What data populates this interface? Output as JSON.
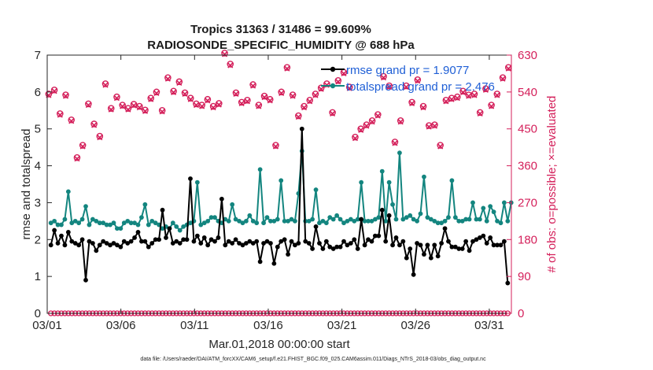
{
  "chart_data": {
    "type": "line",
    "title": "Tropics 31363 / 31486 = 99.609%",
    "subtitle": "RADIOSONDE_SPECIFIC_HUMIDITY @ 688 hPa",
    "xlabel": "Mar.01,2018 00:00:00 start",
    "ylabel": "rmse and totalspread",
    "ylabel_right": "# of obs: o=possible; ×=evaluated",
    "footnote": "data file: /Users/raeder/DAI/ATM_forcXX/CAM6_setup/f.e21.FHIST_BGC.f09_025.CAM6assim.011/Diags_NTrS_2018-03/obs_diag_output.nc",
    "xlim": [
      0,
      31.5
    ],
    "ylim": [
      0,
      7
    ],
    "ylim_right": [
      0,
      630
    ],
    "x_ticks": [
      {
        "x": 0,
        "label": "03/01"
      },
      {
        "x": 5,
        "label": "03/06"
      },
      {
        "x": 10,
        "label": "03/11"
      },
      {
        "x": 15,
        "label": "03/16"
      },
      {
        "x": 20,
        "label": "03/21"
      },
      {
        "x": 25,
        "label": "03/26"
      },
      {
        "x": 30,
        "label": "03/31"
      }
    ],
    "y_ticks": [
      "0",
      "1",
      "2",
      "3",
      "4",
      "5",
      "6",
      "7"
    ],
    "y_ticks_right": [
      "0",
      "90",
      "180",
      "270",
      "360",
      "450",
      "540",
      "630"
    ],
    "series": [
      {
        "name": "rmse grand pr = 1.9077",
        "color": "#000000",
        "axis": "left",
        "values": [
          1.85,
          2.25,
          1.9,
          2.1,
          1.85,
          2.2,
          1.95,
          1.9,
          1.85,
          2.0,
          0.9,
          1.95,
          1.9,
          1.7,
          1.85,
          1.95,
          1.9,
          1.85,
          1.9,
          1.85,
          1.8,
          1.95,
          1.9,
          1.95,
          2.05,
          2.2,
          1.95,
          1.95,
          1.8,
          1.9,
          2.0,
          2.0,
          2.8,
          2.05,
          2.3,
          1.9,
          1.95,
          1.9,
          2.0,
          2.0,
          3.65,
          1.95,
          2.1,
          1.9,
          2.05,
          1.85,
          2.0,
          1.95,
          2.05,
          3.1,
          1.85,
          1.95,
          1.9,
          2.0,
          1.9,
          1.85,
          1.9,
          1.95,
          1.9,
          1.95,
          1.4,
          1.9,
          1.95,
          1.9,
          1.35,
          1.8,
          1.95,
          2.0,
          1.6,
          1.95,
          1.85,
          1.9,
          5.0,
          1.95,
          1.9,
          1.75,
          2.35,
          1.9,
          1.75,
          1.95,
          1.8,
          1.75,
          1.8,
          1.8,
          1.95,
          1.85,
          1.9,
          2.0,
          1.75,
          2.55,
          1.85,
          2.0,
          1.95,
          2.1,
          2.1,
          2.8,
          1.95,
          2.65,
          1.85,
          2.05,
          1.85,
          1.95,
          1.5,
          1.75,
          1.05,
          1.9,
          1.85,
          1.6,
          1.85,
          1.5,
          1.85,
          1.55,
          1.9,
          2.3,
          1.95,
          1.8,
          1.8,
          1.75,
          1.75,
          1.95,
          1.7,
          1.95,
          2.0,
          2.05,
          2.1,
          1.9,
          2.05,
          1.85,
          1.85,
          1.85,
          1.95,
          0.82
        ]
      },
      {
        "name": "totalspread grand pr = 2.476",
        "color": "#13857f",
        "axis": "left",
        "values": [
          2.45,
          2.5,
          2.4,
          2.4,
          2.55,
          3.3,
          2.45,
          2.5,
          2.45,
          2.55,
          2.9,
          2.4,
          2.55,
          2.5,
          2.45,
          2.45,
          2.4,
          2.4,
          2.45,
          2.3,
          2.3,
          2.45,
          2.5,
          2.45,
          2.45,
          2.4,
          2.6,
          2.95,
          2.4,
          2.5,
          2.45,
          2.4,
          2.3,
          2.35,
          2.3,
          2.45,
          2.35,
          2.25,
          2.35,
          2.4,
          2.45,
          2.5,
          3.55,
          2.4,
          2.45,
          2.5,
          2.6,
          2.6,
          2.5,
          2.45,
          2.55,
          2.5,
          2.95,
          2.55,
          2.5,
          2.45,
          2.5,
          2.65,
          2.5,
          2.45,
          3.9,
          2.45,
          2.6,
          2.5,
          2.5,
          2.55,
          3.6,
          2.5,
          2.5,
          2.55,
          2.5,
          3.25,
          4.4,
          2.5,
          2.5,
          2.55,
          3.35,
          2.45,
          2.5,
          2.45,
          2.6,
          2.55,
          2.65,
          2.55,
          2.45,
          2.5,
          2.55,
          2.5,
          2.55,
          3.55,
          2.5,
          2.5,
          2.5,
          2.55,
          2.6,
          3.85,
          2.5,
          3.55,
          2.95,
          2.55,
          4.35,
          2.55,
          2.6,
          2.65,
          2.55,
          2.5,
          2.7,
          3.7,
          2.6,
          2.55,
          2.5,
          2.45,
          2.45,
          2.5,
          2.6,
          3.6,
          2.6,
          2.5,
          2.5,
          2.55,
          2.55,
          3.0,
          2.55,
          2.55,
          2.85,
          2.5,
          2.9,
          2.75,
          2.5,
          2.45,
          3.0,
          2.5,
          3.0
        ]
      }
    ],
    "obs_possible": [
      535,
      545,
      487,
      533,
      472,
      380,
      410,
      511,
      462,
      432,
      560,
      500,
      528,
      508,
      500,
      510,
      505,
      496,
      525,
      540,
      495,
      575,
      542,
      565,
      538,
      525,
      511,
      508,
      522,
      505,
      512,
      635,
      608,
      538,
      515,
      520,
      558,
      508,
      530,
      522,
      410,
      540,
      600,
      533,
      482,
      505,
      520,
      535,
      550,
      560,
      490,
      568,
      588,
      552,
      430,
      450,
      460,
      470,
      485,
      578,
      555,
      418,
      470,
      555,
      515,
      570,
      505,
      458,
      460,
      410,
      520,
      525,
      528,
      542,
      533,
      535,
      490,
      548,
      508,
      535,
      575,
      600
    ],
    "obs_evaluated": [
      532,
      542,
      484,
      530,
      469,
      377,
      407,
      508,
      459,
      429,
      557,
      497,
      525,
      505,
      497,
      507,
      502,
      493,
      522,
      537,
      492,
      572,
      539,
      562,
      535,
      522,
      508,
      505,
      519,
      502,
      509,
      632,
      605,
      535,
      512,
      517,
      555,
      505,
      527,
      519,
      407,
      537,
      597,
      530,
      479,
      502,
      517,
      532,
      547,
      557,
      487,
      565,
      585,
      549,
      427,
      447,
      457,
      467,
      482,
      575,
      552,
      415,
      467,
      552,
      512,
      567,
      502,
      455,
      457,
      407,
      517,
      522,
      525,
      539,
      530,
      532,
      487,
      545,
      505,
      532,
      572,
      597
    ]
  }
}
